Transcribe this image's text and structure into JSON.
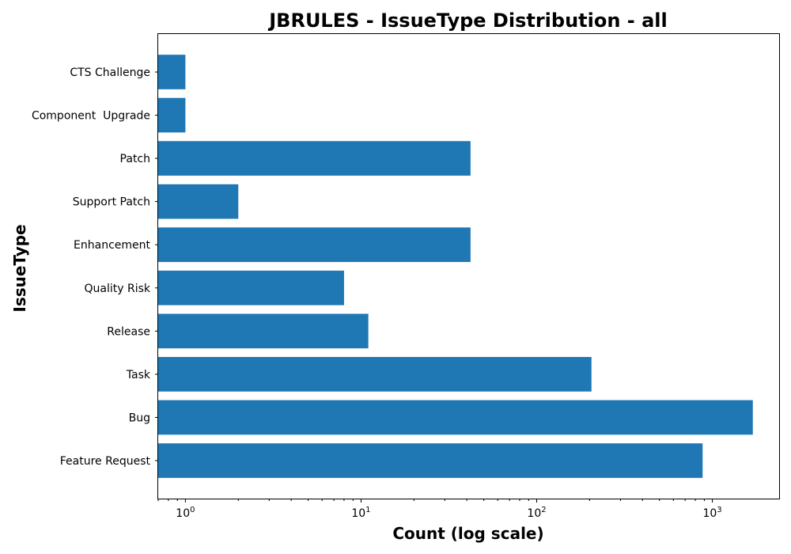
{
  "chart_data": {
    "type": "bar",
    "orientation": "horizontal",
    "title": "JBRULES - IssueType Distribution - all",
    "xlabel": "Count (log scale)",
    "ylabel": "IssueType",
    "x_scale": "log",
    "xlim": [
      0.7,
      2400
    ],
    "x_ticks": [
      {
        "base": "10",
        "exp": "0",
        "value": 1
      },
      {
        "base": "10",
        "exp": "1",
        "value": 10
      },
      {
        "base": "10",
        "exp": "2",
        "value": 100
      },
      {
        "base": "10",
        "exp": "3",
        "value": 1000
      }
    ],
    "categories": [
      "CTS Challenge",
      "Component  Upgrade",
      "Patch",
      "Support Patch",
      "Enhancement",
      "Quality Risk",
      "Release",
      "Task",
      "Bug",
      "Feature Request"
    ],
    "values": [
      1,
      1,
      42,
      2,
      42,
      8,
      11,
      205,
      1700,
      880
    ],
    "bar_color": "#1f77b4",
    "grid": false,
    "legend": "none"
  }
}
